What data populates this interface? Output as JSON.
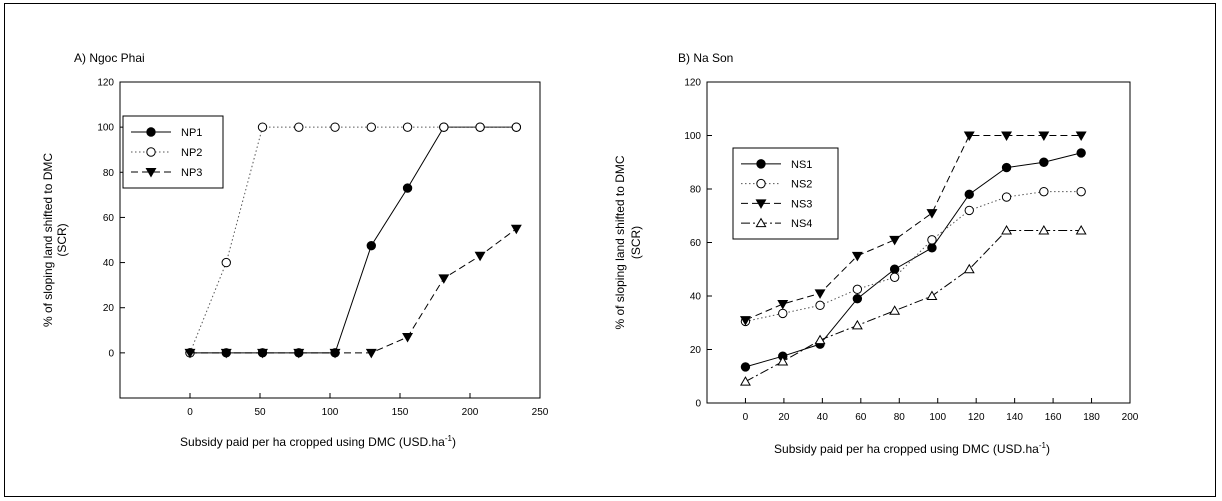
{
  "chart_data": [
    {
      "type": "line",
      "title": "A) Ngoc Phai",
      "xlabel": "Subsidy paid per ha cropped using DMC (USD.ha",
      "xlabel_sup": "-1",
      "xlabel_close": ")",
      "ylabel_line1": "% of sloping land shifted to DMC",
      "ylabel_line2": "(SCR)",
      "xlim": [
        -50,
        250
      ],
      "ylim": [
        -20,
        120
      ],
      "xticks": [
        0,
        50,
        100,
        150,
        200,
        250
      ],
      "yticks": [
        0,
        20,
        40,
        60,
        80,
        100,
        120
      ],
      "grid": false,
      "legend_position": "top-left",
      "series": [
        {
          "name": "NP1",
          "x": [
            0,
            25.9,
            51.8,
            77.7,
            103.6,
            129.5,
            155.4,
            181.3,
            207.2,
            233.1
          ],
          "values": [
            0,
            0,
            0,
            0,
            0,
            47.5,
            73,
            100,
            100,
            100
          ],
          "marker": "filled-circle",
          "dash": "solid"
        },
        {
          "name": "NP2",
          "x": [
            0,
            25.9,
            51.8,
            77.7,
            103.6,
            129.5,
            155.4,
            181.3,
            207.2,
            233.1
          ],
          "values": [
            0,
            40,
            100,
            100,
            100,
            100,
            100,
            100,
            100,
            100
          ],
          "marker": "open-circle",
          "dash": "dotted"
        },
        {
          "name": "NP3",
          "x": [
            0,
            25.9,
            51.8,
            77.7,
            103.6,
            129.5,
            155.4,
            181.3,
            207.2,
            233.1
          ],
          "values": [
            0,
            0,
            0,
            0,
            0,
            0,
            7,
            33,
            43,
            55
          ],
          "marker": "filled-triangle-down",
          "dash": "dashed"
        }
      ]
    },
    {
      "type": "line",
      "title": "B) Na Son",
      "xlabel": "Subsidy paid per ha cropped using DMC (USD.ha",
      "xlabel_sup": "-1",
      "xlabel_close": ")",
      "ylabel_line1": "% of sloping land shifted to DMC",
      "ylabel_line2": "(SCR)",
      "xlim": [
        -20,
        200
      ],
      "ylim": [
        0,
        120
      ],
      "xticks": [
        0,
        20,
        40,
        60,
        80,
        100,
        120,
        140,
        160,
        180,
        200
      ],
      "yticks": [
        0,
        20,
        40,
        60,
        80,
        100,
        120
      ],
      "grid": false,
      "legend_position": "top-left",
      "series": [
        {
          "name": "NS1",
          "x": [
            0,
            19.4,
            38.8,
            58.2,
            77.6,
            97,
            116.4,
            135.8,
            155.2,
            174.6
          ],
          "values": [
            13.5,
            17.5,
            22,
            39,
            50,
            58,
            78,
            88,
            90,
            93.5
          ],
          "marker": "filled-circle",
          "dash": "solid"
        },
        {
          "name": "NS2",
          "x": [
            0,
            19.4,
            38.8,
            58.2,
            77.6,
            97,
            116.4,
            135.8,
            155.2,
            174.6
          ],
          "values": [
            30.5,
            33.5,
            36.5,
            42.5,
            47,
            61,
            72,
            77,
            79,
            79
          ],
          "marker": "open-circle",
          "dash": "dotted"
        },
        {
          "name": "NS3",
          "x": [
            0,
            19.4,
            38.8,
            58.2,
            77.6,
            97,
            116.4,
            135.8,
            155.2,
            174.6
          ],
          "values": [
            31,
            37,
            41,
            55,
            61,
            71,
            100,
            100,
            100,
            100
          ],
          "marker": "filled-triangle-down",
          "dash": "dashed"
        },
        {
          "name": "NS4",
          "x": [
            0,
            19.4,
            38.8,
            58.2,
            77.6,
            97,
            116.4,
            135.8,
            155.2,
            174.6
          ],
          "values": [
            8,
            15.5,
            23.5,
            29,
            34.5,
            40,
            50,
            64.5,
            64.5,
            64.5
          ],
          "marker": "open-triangle-up",
          "dash": "dash-dot"
        }
      ]
    }
  ]
}
